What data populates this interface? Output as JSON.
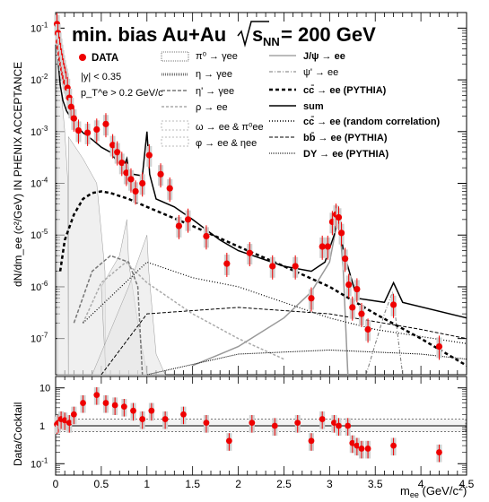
{
  "chart_data": [
    {
      "type": "scatter",
      "title": "min. bias Au+Au √s_NN = 200 GeV",
      "title_parts": {
        "main": "min. bias Au+Au",
        "sqrt": "s",
        "sub": "NN",
        "tail": " = 200 GeV"
      },
      "xlabel": "m_ee (GeV/c²)",
      "xlabel_parts": {
        "m": "m",
        "sub": "ee",
        "unit": "(GeV/c",
        "sup": "2",
        "close": ")"
      },
      "ylabel": "dN/dm_ee (c²/GeV) IN PHENIX ACCEPTANCE",
      "xlim": [
        0,
        4.5
      ],
      "ylim": [
        2e-08,
        0.2
      ],
      "yscale": "log",
      "x_ticks": [
        "0",
        "0.5",
        "1",
        "1.5",
        "2",
        "2.5",
        "3",
        "3.5",
        "4",
        "4.5"
      ],
      "y_ticks": [
        "10^-7",
        "10^-6",
        "10^-5",
        "10^-4",
        "10^-3",
        "10^-2",
        "10^-1"
      ],
      "cuts": [
        "|y| < 0.35",
        "p_T^e > 0.2 GeV/c"
      ],
      "legend": {
        "data": "DATA",
        "col1": [
          "π⁰ → γee",
          "η → γee",
          "η' → γee",
          "ρ → ee",
          "ω → ee & π⁰ee",
          "φ → ee & ηee"
        ],
        "col2": [
          "J/ψ → ee",
          "ψ' → ee",
          "cc̄ → ee (PYTHIA)",
          "sum",
          "cc̄ → ee (random correlation)",
          "bb̄ → ee (PYTHIA)",
          "DY → ee (PYTHIA)"
        ]
      },
      "data_points": [
        [
          0.015,
          0.12
        ],
        [
          0.025,
          0.08
        ],
        [
          0.035,
          0.055
        ],
        [
          0.045,
          0.042
        ],
        [
          0.055,
          0.032
        ],
        [
          0.065,
          0.025
        ],
        [
          0.075,
          0.02
        ],
        [
          0.085,
          0.016
        ],
        [
          0.095,
          0.013
        ],
        [
          0.105,
          0.011
        ],
        [
          0.115,
          0.009
        ],
        [
          0.13,
          0.007
        ],
        [
          0.15,
          0.0045
        ],
        [
          0.17,
          0.003
        ],
        [
          0.2,
          0.0018
        ],
        [
          0.25,
          0.00105
        ],
        [
          0.35,
          0.00095
        ],
        [
          0.45,
          0.0011
        ],
        [
          0.55,
          0.0014
        ],
        [
          0.625,
          0.00055
        ],
        [
          0.675,
          0.0004
        ],
        [
          0.725,
          0.00025
        ],
        [
          0.775,
          0.00016
        ],
        [
          0.825,
          0.00012
        ],
        [
          0.875,
          7e-05
        ],
        [
          0.95,
          0.0001
        ],
        [
          1.025,
          0.00035
        ],
        [
          1.15,
          0.00015
        ],
        [
          1.25,
          8e-05
        ],
        [
          1.35,
          1.5e-05
        ],
        [
          1.45,
          2e-05
        ],
        [
          1.65,
          9.5e-06
        ],
        [
          1.875,
          2.8e-06
        ],
        [
          2.125,
          4.5e-06
        ],
        [
          2.375,
          2.5e-06
        ],
        [
          2.625,
          2.5e-06
        ],
        [
          2.8,
          6e-07
        ],
        [
          2.92,
          6e-06
        ],
        [
          2.98,
          6e-06
        ],
        [
          3.03,
          1.8e-05
        ],
        [
          3.07,
          2.5e-05
        ],
        [
          3.1,
          2.2e-05
        ],
        [
          3.13,
          1.1e-05
        ],
        [
          3.17,
          3.5e-06
        ],
        [
          3.21,
          1.1e-06
        ],
        [
          3.25,
          4e-07
        ],
        [
          3.3,
          9e-07
        ],
        [
          3.35,
          3e-07
        ],
        [
          3.42,
          1.5e-07
        ],
        [
          3.7,
          4.5e-07
        ],
        [
          4.2,
          7e-08
        ]
      ],
      "sum_curve": [
        [
          0.01,
          0.1
        ],
        [
          0.03,
          0.02
        ],
        [
          0.05,
          0.008
        ],
        [
          0.08,
          0.004
        ],
        [
          0.12,
          0.0025
        ],
        [
          0.2,
          0.0015
        ],
        [
          0.3,
          0.00095
        ],
        [
          0.4,
          0.0007
        ],
        [
          0.5,
          0.0005
        ],
        [
          0.6,
          0.0004
        ],
        [
          0.65,
          0.0003
        ],
        [
          0.7,
          0.00025
        ],
        [
          0.75,
          0.00022
        ],
        [
          0.78,
          0.0003
        ],
        [
          0.8,
          0.00018
        ],
        [
          0.85,
          0.00015
        ],
        [
          0.95,
          0.00014
        ],
        [
          1.0,
          0.001
        ],
        [
          1.03,
          0.00015
        ],
        [
          1.1,
          5e-05
        ],
        [
          1.3,
          3.5e-05
        ],
        [
          1.5,
          2e-05
        ],
        [
          1.8,
          8e-06
        ],
        [
          2.0,
          5e-06
        ],
        [
          2.5,
          2.5e-06
        ],
        [
          2.8,
          2e-06
        ],
        [
          2.95,
          3e-06
        ],
        [
          3.05,
          1e-05
        ],
        [
          3.1,
          2.8e-05
        ],
        [
          3.15,
          5e-06
        ],
        [
          3.3,
          6e-07
        ],
        [
          3.6,
          5e-07
        ],
        [
          3.7,
          1.2e-06
        ],
        [
          3.8,
          5e-07
        ],
        [
          4.5,
          2.5e-07
        ]
      ],
      "ccbar_curve": [
        [
          0.05,
          2e-06
        ],
        [
          0.1,
          8e-06
        ],
        [
          0.2,
          2.5e-05
        ],
        [
          0.3,
          5e-05
        ],
        [
          0.4,
          6.5e-05
        ],
        [
          0.5,
          7e-05
        ],
        [
          0.6,
          6.5e-05
        ],
        [
          0.8,
          5e-05
        ],
        [
          1.0,
          3.5e-05
        ],
        [
          1.2,
          2.5e-05
        ],
        [
          1.5,
          1.5e-05
        ],
        [
          2.0,
          6e-06
        ],
        [
          2.5,
          2.5e-06
        ],
        [
          3.0,
          1e-06
        ],
        [
          3.5,
          3e-07
        ],
        [
          4.0,
          1e-07
        ],
        [
          4.5,
          3e-08
        ]
      ],
      "ratio_panel": {
        "ylabel": "Data/Cocktail",
        "ylim": [
          0.05,
          20
        ],
        "yscale": "log",
        "y_ticks": [
          "10^-1",
          "1",
          "10"
        ],
        "points": [
          [
            0.015,
            1.1
          ],
          [
            0.03,
            1.2
          ],
          [
            0.06,
            1.5
          ],
          [
            0.1,
            1.4
          ],
          [
            0.15,
            1.2
          ],
          [
            0.2,
            2.0
          ],
          [
            0.3,
            4.0
          ],
          [
            0.45,
            6.5
          ],
          [
            0.55,
            4.0
          ],
          [
            0.65,
            3.5
          ],
          [
            0.75,
            3.2
          ],
          [
            0.85,
            2.5
          ],
          [
            0.95,
            1.5
          ],
          [
            1.05,
            2.5
          ],
          [
            1.2,
            1.5
          ],
          [
            1.4,
            2.0
          ],
          [
            1.65,
            1.2
          ],
          [
            1.9,
            0.4
          ],
          [
            2.15,
            1.2
          ],
          [
            2.4,
            1.0
          ],
          [
            2.65,
            1.2
          ],
          [
            2.8,
            0.4
          ],
          [
            2.92,
            1.5
          ],
          [
            3.05,
            1.2
          ],
          [
            3.1,
            1.0
          ],
          [
            3.2,
            1.0
          ],
          [
            3.25,
            0.35
          ],
          [
            3.3,
            0.3
          ],
          [
            3.35,
            0.25
          ],
          [
            3.42,
            0.25
          ],
          [
            3.7,
            0.3
          ],
          [
            4.2,
            0.2
          ]
        ]
      }
    }
  ]
}
